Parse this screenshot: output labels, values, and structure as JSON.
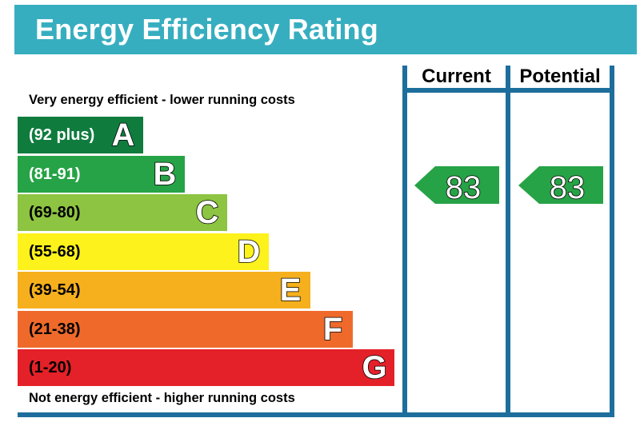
{
  "header": {
    "title": "Energy Efficiency Rating"
  },
  "columns": {
    "current": "Current",
    "potential": "Potential"
  },
  "captions": {
    "top": "Very energy efficient - lower running costs",
    "bottom": "Not energy efficient - higher running costs"
  },
  "chart_data": {
    "type": "bar",
    "title": "Energy Efficiency Rating",
    "categories": [
      "A",
      "B",
      "C",
      "D",
      "E",
      "F",
      "G"
    ],
    "series": [
      {
        "name": "bands",
        "ranges": [
          "(92 plus)",
          "(81-91)",
          "(69-80)",
          "(55-68)",
          "(39-54)",
          "(21-38)",
          "(1-20)"
        ],
        "colors": [
          "#0f7c3e",
          "#26a346",
          "#8dc441",
          "#fdf21b",
          "#f6b01d",
          "#ef6a2a",
          "#e42128"
        ]
      }
    ],
    "ratings": {
      "current": {
        "value": "83",
        "color": "#26a346"
      },
      "potential": {
        "value": "83",
        "color": "#26a346"
      }
    }
  }
}
